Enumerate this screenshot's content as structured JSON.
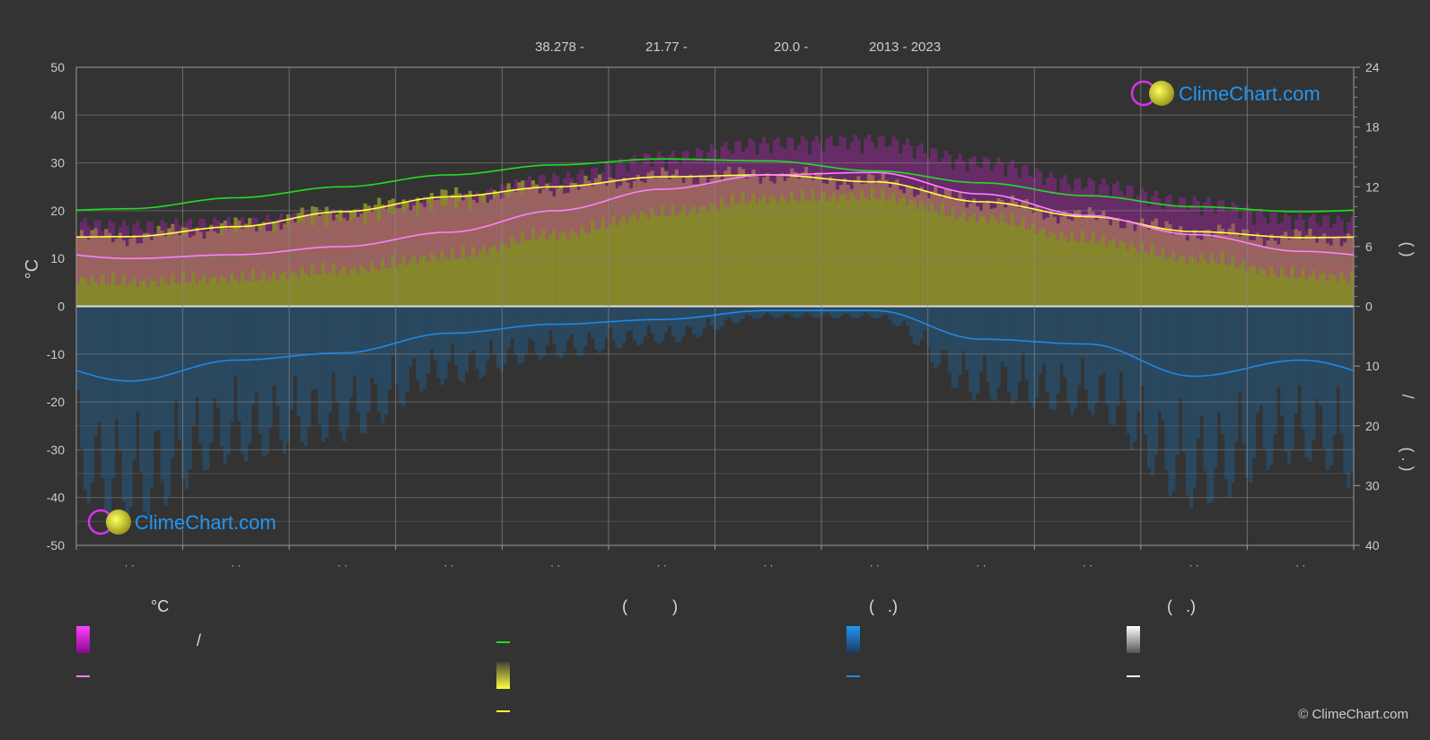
{
  "header": {
    "lat": "38.278 -",
    "lon": "21.77 -",
    "elev": "20.0 -",
    "years": "2013 - 2023"
  },
  "brand": {
    "logo_text": "ClimeChart.com",
    "copyright": "© ClimeChart.com"
  },
  "legend": {
    "col1_title": "°C",
    "col1_swatch_sep": "/",
    "col2_title": "(          )",
    "col3_title": "(   .)",
    "col4_title": "(   .)"
  },
  "colors": {
    "background": "#333333",
    "temp_range": "#e020e0",
    "avg_temp": "#ff80ff",
    "daylight": "#22dd22",
    "sunshine": "#e8e838",
    "sunshine_line": "#ffff44",
    "precip": "#1e88e5",
    "snow": "#ffffff",
    "logo_text": "#2196f3"
  },
  "chart_data": {
    "type": "line",
    "left_axis": {
      "label": "°C",
      "ticks": [
        50,
        40,
        30,
        20,
        10,
        0,
        -10,
        -20,
        -30,
        -40,
        -50
      ],
      "range": [
        -50,
        50
      ]
    },
    "right_axis_top": {
      "ticks": [
        24,
        18,
        12,
        6,
        0
      ],
      "range": [
        0,
        24
      ],
      "label_fragment": "(   )"
    },
    "right_axis_bottom": {
      "ticks": [
        0,
        10,
        20,
        30,
        40
      ],
      "range": [
        0,
        40
      ],
      "label_fragment": "/",
      "label_fragment2": "( .   )"
    },
    "x_tick_labels": [
      "· ·",
      "· ·",
      "· ·",
      "· ·",
      "· ·",
      "· ·",
      "· ·",
      "· ·",
      "· ·",
      "· ·",
      "· ·",
      "· ·"
    ],
    "months_mid": [
      0.5,
      1.5,
      2.5,
      3.5,
      4.5,
      5.5,
      6.5,
      7.5,
      8.5,
      9.5,
      10.5,
      11.5
    ],
    "series": [
      {
        "key": "daylight_hours",
        "axis": "right_top",
        "values": [
          9.8,
          10.9,
          12.0,
          13.2,
          14.2,
          14.8,
          14.6,
          13.6,
          12.4,
          11.1,
          10.0,
          9.5
        ]
      },
      {
        "key": "sunshine_hours",
        "axis": "right_top",
        "values": [
          7.0,
          8.0,
          9.5,
          11.0,
          12.0,
          13.0,
          13.2,
          12.5,
          10.5,
          9.0,
          7.5,
          6.9
        ]
      },
      {
        "key": "avg_temperature",
        "axis": "left",
        "values": [
          10.0,
          10.8,
          12.5,
          15.5,
          20.0,
          24.5,
          27.5,
          28.0,
          23.5,
          19.0,
          15.0,
          11.5
        ]
      },
      {
        "key": "avg_precipitation",
        "axis": "right_bottom",
        "values": [
          12.5,
          9.0,
          7.8,
          4.5,
          3.0,
          2.2,
          0.7,
          0.7,
          5.5,
          6.3,
          11.7,
          9.0
        ]
      }
    ],
    "grid": true
  }
}
